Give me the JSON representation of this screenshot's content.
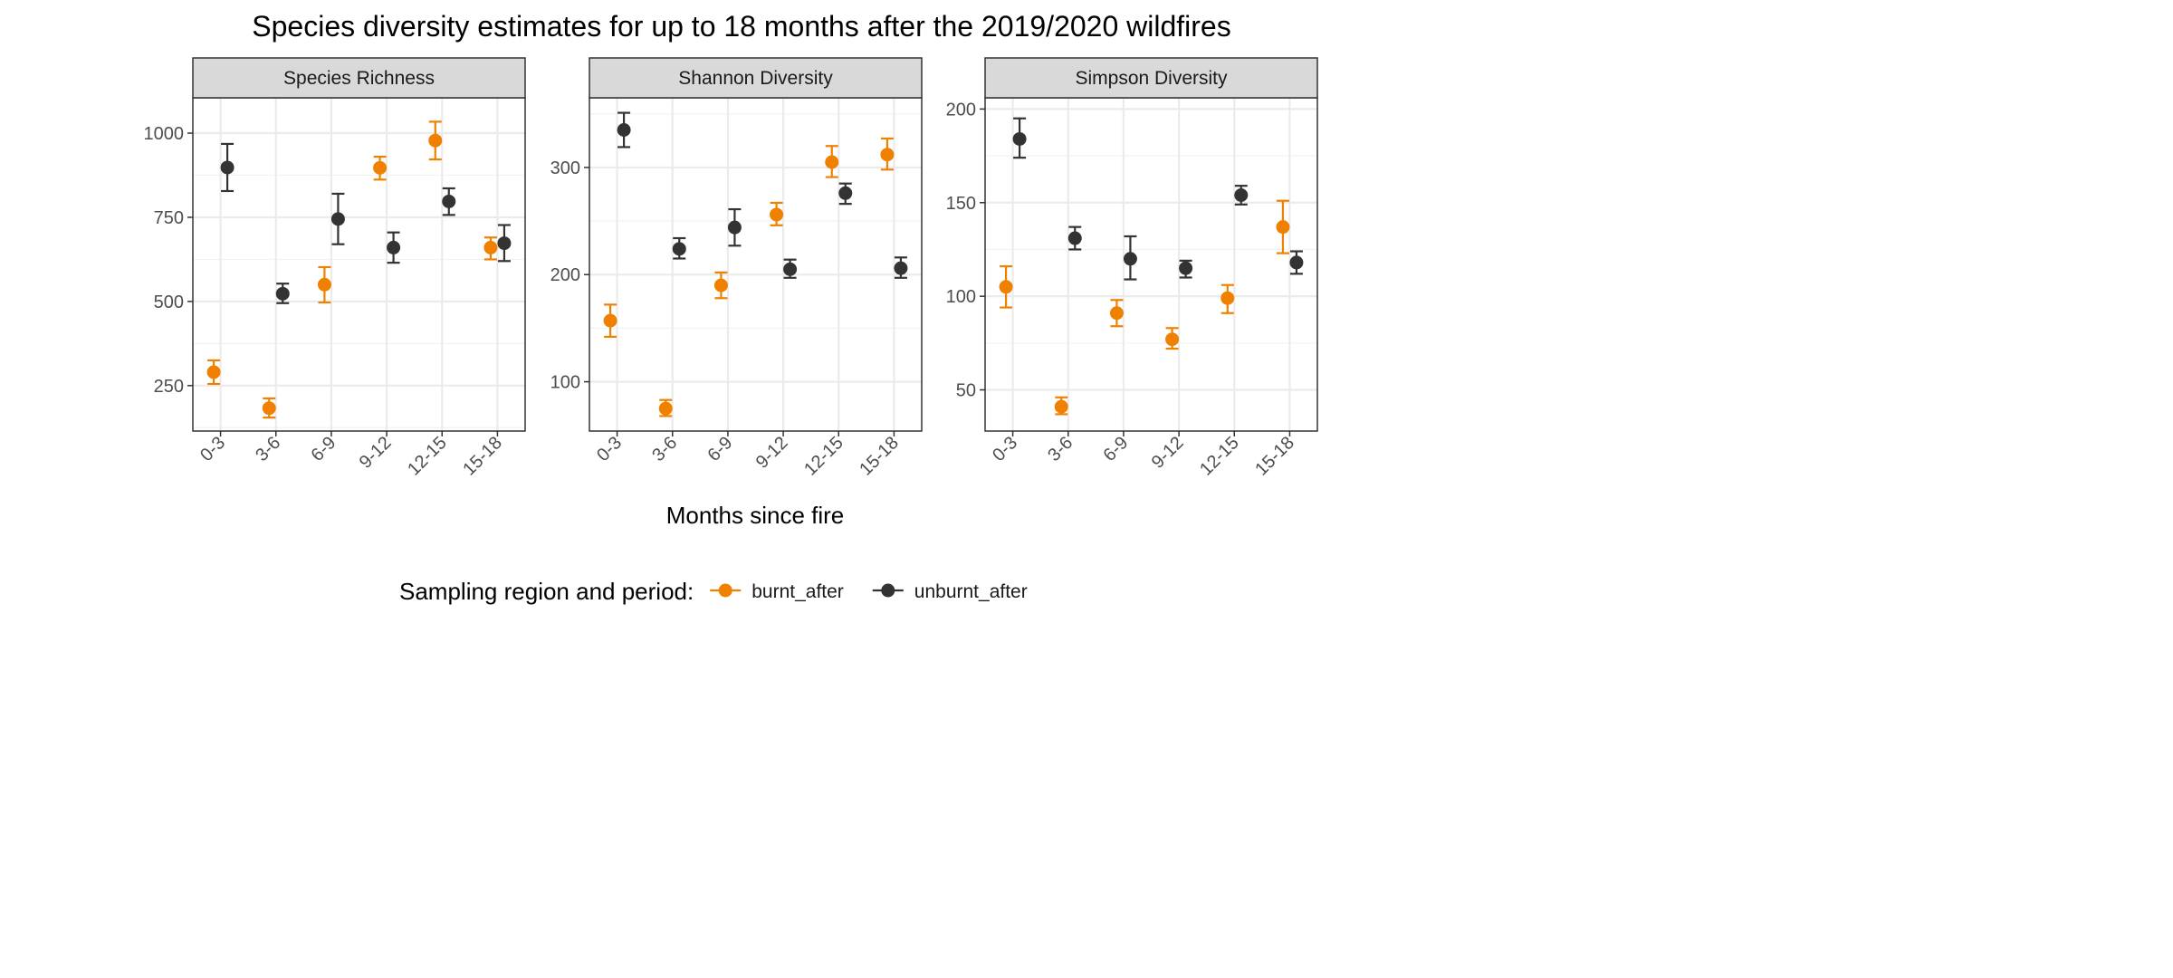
{
  "figure_title": "Species diversity estimates for up to 18 months after the 2019/2020 wildfires",
  "x_axis_title": "Months since fire",
  "legend": {
    "title": "Sampling region and period:",
    "items": [
      {
        "label": "burnt_after",
        "color": "#F08000"
      },
      {
        "label": "unburnt_after",
        "color": "#333333"
      }
    ]
  },
  "chart_data": [
    {
      "type": "scatter",
      "error_bars": true,
      "facet": "Species Richness",
      "categories": [
        "0-3",
        "3-6",
        "6-9",
        "9-12",
        "12-15",
        "15-18"
      ],
      "ylim": [
        115,
        1105
      ],
      "yticks": [
        250,
        500,
        750,
        1000
      ],
      "grid": true,
      "series": [
        {
          "name": "burnt_after",
          "color": "#F08000",
          "values": [
            290,
            183,
            550,
            897,
            978,
            660
          ],
          "lower": [
            255,
            155,
            497,
            862,
            922,
            625
          ],
          "upper": [
            325,
            212,
            602,
            930,
            1034,
            690
          ]
        },
        {
          "name": "unburnt_after",
          "color": "#333333",
          "values": [
            898,
            523,
            745,
            660,
            797,
            673
          ],
          "lower": [
            828,
            495,
            670,
            615,
            757,
            620
          ],
          "upper": [
            968,
            553,
            820,
            705,
            836,
            727
          ]
        }
      ]
    },
    {
      "type": "scatter",
      "error_bars": true,
      "facet": "Shannon Diversity",
      "categories": [
        "0-3",
        "3-6",
        "6-9",
        "9-12",
        "12-15",
        "15-18"
      ],
      "ylim": [
        54,
        365
      ],
      "yticks": [
        100,
        200,
        300
      ],
      "grid": true,
      "series": [
        {
          "name": "burnt_after",
          "color": "#F08000",
          "values": [
            157,
            75,
            190,
            256,
            305,
            312
          ],
          "lower": [
            142,
            68,
            178,
            246,
            291,
            298
          ],
          "upper": [
            172,
            83,
            202,
            267,
            320,
            327
          ]
        },
        {
          "name": "unburnt_after",
          "color": "#333333",
          "values": [
            335,
            224,
            244,
            205,
            276,
            206
          ],
          "lower": [
            319,
            215,
            227,
            197,
            266,
            197
          ],
          "upper": [
            351,
            234,
            261,
            214,
            285,
            216
          ]
        }
      ]
    },
    {
      "type": "scatter",
      "error_bars": true,
      "facet": "Simpson Diversity",
      "categories": [
        "0-3",
        "3-6",
        "6-9",
        "9-12",
        "12-15",
        "15-18"
      ],
      "ylim": [
        28,
        206
      ],
      "yticks": [
        50,
        100,
        150,
        200
      ],
      "grid": true,
      "series": [
        {
          "name": "burnt_after",
          "color": "#F08000",
          "values": [
            105,
            41,
            91,
            77,
            99,
            137
          ],
          "lower": [
            94,
            37,
            84,
            72,
            91,
            123
          ],
          "upper": [
            116,
            46,
            98,
            83,
            106,
            151
          ]
        },
        {
          "name": "unburnt_after",
          "color": "#333333",
          "values": [
            184,
            131,
            120,
            115,
            154,
            118
          ],
          "lower": [
            174,
            125,
            109,
            110,
            149,
            112
          ],
          "upper": [
            195,
            137,
            132,
            119,
            159,
            124
          ]
        }
      ]
    }
  ]
}
